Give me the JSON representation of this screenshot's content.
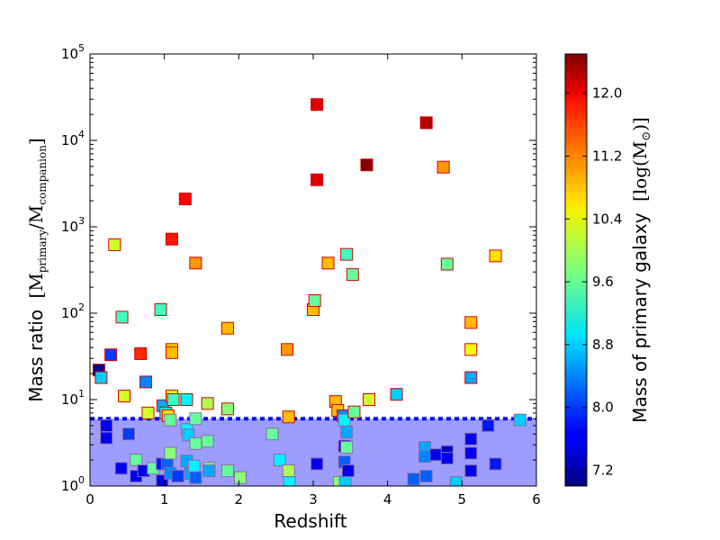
{
  "chart_data": {
    "type": "scatter",
    "xlabel": "Redshift",
    "ylabel_prefix": "Mass ratio",
    "ylabel_math": "[M",
    "ylabel_sub1": "primary",
    "ylabel_mid": "/M",
    "ylabel_sub2": "companion",
    "ylabel_end": "]",
    "xlim": [
      0,
      6
    ],
    "ylim": [
      1,
      100000
    ],
    "yscale": "log",
    "x_ticks": [
      "0",
      "1",
      "2",
      "3",
      "4",
      "5",
      "6"
    ],
    "y_tick_base": "10",
    "y_tick_exponents": [
      "0",
      "1",
      "2",
      "3",
      "4",
      "5"
    ],
    "threshold_line": 6,
    "shaded_region": [
      1,
      6
    ],
    "colorbar": {
      "label_prefix": "Mass of primary galaxy",
      "label_math": "[log(M",
      "label_sub": "⊙",
      "label_end": ")]",
      "range": [
        7.0,
        12.5
      ],
      "ticks": [
        "7.2",
        "8.0",
        "8.8",
        "9.6",
        "10.4",
        "11.2",
        "12.0"
      ]
    },
    "points": [
      {
        "x": 0.12,
        "y": 22,
        "c": 7.1
      },
      {
        "x": 0.15,
        "y": 18,
        "c": 8.8
      },
      {
        "x": 0.22,
        "y": 3.6,
        "c": 7.6
      },
      {
        "x": 0.22,
        "y": 5.0,
        "c": 7.6
      },
      {
        "x": 0.28,
        "y": 33,
        "c": 8.0
      },
      {
        "x": 0.33,
        "y": 620,
        "c": 10.2
      },
      {
        "x": 0.42,
        "y": 1.6,
        "c": 7.6
      },
      {
        "x": 0.43,
        "y": 90,
        "c": 9.4
      },
      {
        "x": 0.46,
        "y": 11,
        "c": 10.2
      },
      {
        "x": 0.52,
        "y": 4.0,
        "c": 8.0
      },
      {
        "x": 0.62,
        "y": 2.0,
        "c": 9.6
      },
      {
        "x": 0.62,
        "y": 1.3,
        "c": 7.6
      },
      {
        "x": 0.68,
        "y": 34,
        "c": 11.6
      },
      {
        "x": 0.72,
        "y": 1.5,
        "c": 7.6
      },
      {
        "x": 0.75,
        "y": 16,
        "c": 8.4
      },
      {
        "x": 0.78,
        "y": 7.0,
        "c": 10.2
      },
      {
        "x": 0.85,
        "y": 1.6,
        "c": 9.6
      },
      {
        "x": 0.95,
        "y": 110,
        "c": 9.4
      },
      {
        "x": 0.97,
        "y": 1.8,
        "c": 7.8
      },
      {
        "x": 0.97,
        "y": 1.15,
        "c": 7.6
      },
      {
        "x": 0.98,
        "y": 8.5,
        "c": 8.6
      },
      {
        "x": 1.02,
        "y": 7.0,
        "c": 9.2
      },
      {
        "x": 1.04,
        "y": 1.8,
        "c": 8.2
      },
      {
        "x": 1.05,
        "y": 6.5,
        "c": 10.6
      },
      {
        "x": 1.08,
        "y": 5.8,
        "c": 9.6
      },
      {
        "x": 1.08,
        "y": 2.4,
        "c": 9.8
      },
      {
        "x": 1.08,
        "y": 1.4,
        "c": 8.4
      },
      {
        "x": 1.1,
        "y": 720,
        "c": 11.7
      },
      {
        "x": 1.1,
        "y": 38,
        "c": 10.6
      },
      {
        "x": 1.1,
        "y": 35,
        "c": 10.8
      },
      {
        "x": 1.1,
        "y": 11,
        "c": 10.4
      },
      {
        "x": 1.12,
        "y": 10,
        "c": 9.4
      },
      {
        "x": 1.18,
        "y": 1.3,
        "c": 8.0
      },
      {
        "x": 1.28,
        "y": 2100,
        "c": 11.8
      },
      {
        "x": 1.3,
        "y": 10,
        "c": 9.0
      },
      {
        "x": 1.3,
        "y": 4.5,
        "c": 9.0
      },
      {
        "x": 1.3,
        "y": 1.95,
        "c": 8.6
      },
      {
        "x": 1.32,
        "y": 3.9,
        "c": 8.8
      },
      {
        "x": 1.35,
        "y": 1.4,
        "c": 8.6
      },
      {
        "x": 1.4,
        "y": 1.7,
        "c": 9.0
      },
      {
        "x": 1.42,
        "y": 380,
        "c": 11.0
      },
      {
        "x": 1.42,
        "y": 6.0,
        "c": 9.6
      },
      {
        "x": 1.42,
        "y": 3.1,
        "c": 9.6
      },
      {
        "x": 1.42,
        "y": 1.25,
        "c": 8.2
      },
      {
        "x": 1.58,
        "y": 9.0,
        "c": 10.0
      },
      {
        "x": 1.58,
        "y": 3.3,
        "c": 9.6
      },
      {
        "x": 1.6,
        "y": 1.6,
        "c": 9.8
      },
      {
        "x": 1.6,
        "y": 1.5,
        "c": 8.6
      },
      {
        "x": 1.85,
        "y": 67,
        "c": 10.8
      },
      {
        "x": 1.85,
        "y": 7.8,
        "c": 9.8
      },
      {
        "x": 1.85,
        "y": 1.5,
        "c": 9.6
      },
      {
        "x": 2.02,
        "y": 1.25,
        "c": 9.8
      },
      {
        "x": 2.45,
        "y": 4.0,
        "c": 9.6
      },
      {
        "x": 2.55,
        "y": 2.0,
        "c": 9.0
      },
      {
        "x": 2.65,
        "y": 38,
        "c": 11.0
      },
      {
        "x": 2.67,
        "y": 6.3,
        "c": 10.8
      },
      {
        "x": 2.67,
        "y": 1.5,
        "c": 10.0
      },
      {
        "x": 2.68,
        "y": 1.1,
        "c": 9.0
      },
      {
        "x": 3.0,
        "y": 110,
        "c": 10.8
      },
      {
        "x": 3.02,
        "y": 140,
        "c": 9.6
      },
      {
        "x": 3.05,
        "y": 26000,
        "c": 12.0
      },
      {
        "x": 3.05,
        "y": 3500,
        "c": 12.0
      },
      {
        "x": 3.05,
        "y": 1.8,
        "c": 7.6
      },
      {
        "x": 3.2,
        "y": 380,
        "c": 10.8
      },
      {
        "x": 3.3,
        "y": 9.5,
        "c": 10.8
      },
      {
        "x": 3.33,
        "y": 7.5,
        "c": 10.8
      },
      {
        "x": 3.35,
        "y": 1.1,
        "c": 9.8
      },
      {
        "x": 3.4,
        "y": 6.5,
        "c": 8.4
      },
      {
        "x": 3.42,
        "y": 5.8,
        "c": 9.0
      },
      {
        "x": 3.42,
        "y": 2.9,
        "c": 7.6
      },
      {
        "x": 3.42,
        "y": 1.9,
        "c": 8.2
      },
      {
        "x": 3.43,
        "y": 1.1,
        "c": 8.8
      },
      {
        "x": 3.45,
        "y": 480,
        "c": 9.4
      },
      {
        "x": 3.45,
        "y": 4.2,
        "c": 8.6
      },
      {
        "x": 3.45,
        "y": 2.8,
        "c": 9.6
      },
      {
        "x": 3.47,
        "y": 1.5,
        "c": 7.6
      },
      {
        "x": 3.53,
        "y": 280,
        "c": 9.6
      },
      {
        "x": 3.55,
        "y": 7.2,
        "c": 9.6
      },
      {
        "x": 3.72,
        "y": 5200,
        "c": 12.6
      },
      {
        "x": 3.75,
        "y": 10,
        "c": 10.2
      },
      {
        "x": 4.12,
        "y": 11.5,
        "c": 8.8
      },
      {
        "x": 4.35,
        "y": 1.2,
        "c": 8.2
      },
      {
        "x": 4.5,
        "y": 2.8,
        "c": 8.6
      },
      {
        "x": 4.5,
        "y": 2.2,
        "c": 8.4
      },
      {
        "x": 4.52,
        "y": 16000,
        "c": 12.2
      },
      {
        "x": 4.52,
        "y": 1.3,
        "c": 8.2
      },
      {
        "x": 4.65,
        "y": 2.3,
        "c": 7.6
      },
      {
        "x": 4.75,
        "y": 4900,
        "c": 11.0
      },
      {
        "x": 4.8,
        "y": 370,
        "c": 9.6
      },
      {
        "x": 4.8,
        "y": 2.5,
        "c": 7.4
      },
      {
        "x": 4.8,
        "y": 2.1,
        "c": 7.6
      },
      {
        "x": 4.92,
        "y": 1.1,
        "c": 8.8
      },
      {
        "x": 5.12,
        "y": 78,
        "c": 10.8
      },
      {
        "x": 5.12,
        "y": 38,
        "c": 10.4
      },
      {
        "x": 5.12,
        "y": 18,
        "c": 8.6
      },
      {
        "x": 5.12,
        "y": 3.5,
        "c": 7.6
      },
      {
        "x": 5.12,
        "y": 2.4,
        "c": 7.6
      },
      {
        "x": 5.12,
        "y": 1.5,
        "c": 7.6
      },
      {
        "x": 5.35,
        "y": 5.0,
        "c": 7.8
      },
      {
        "x": 5.45,
        "y": 460,
        "c": 10.6
      },
      {
        "x": 5.45,
        "y": 1.8,
        "c": 7.8
      },
      {
        "x": 5.78,
        "y": 5.8,
        "c": 8.8
      }
    ]
  }
}
